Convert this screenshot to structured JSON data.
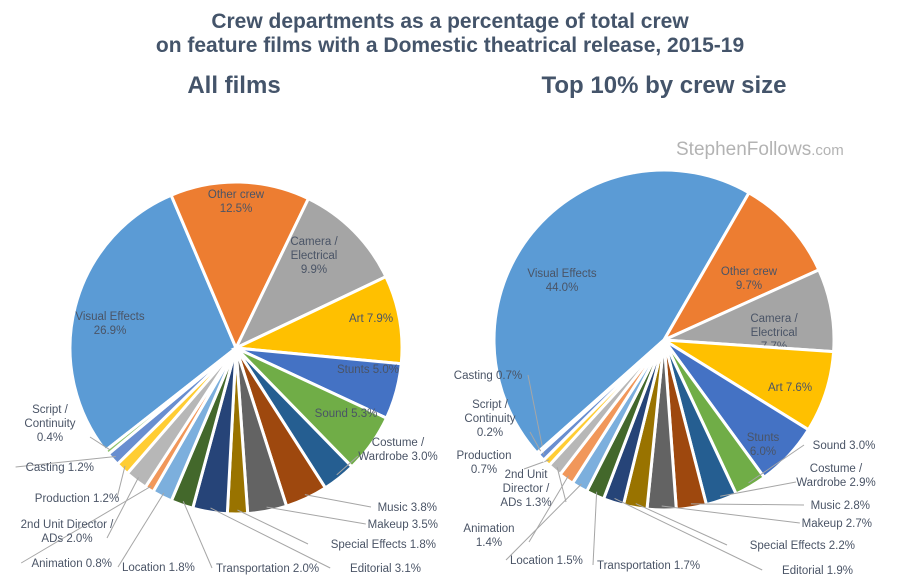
{
  "title_line1": "Crew departments as a percentage of total crew",
  "title_line2": "on feature films with a Domestic theatrical release, 2015-19",
  "watermark": {
    "name": "StephenFollows",
    "suffix": ".com"
  },
  "chart_data": [
    {
      "type": "pie",
      "title": "All films",
      "slices": [
        {
          "label": "Visual Effects",
          "value": 26.9,
          "color": "#5b9bd5",
          "label_lines": [
            "Visual Effects",
            "26.9%"
          ]
        },
        {
          "label": "Other crew",
          "value": 12.5,
          "color": "#ed7d31",
          "label_lines": [
            "Other crew",
            "12.5%"
          ]
        },
        {
          "label": "Camera / Electrical",
          "value": 9.9,
          "color": "#a5a5a5",
          "label_lines": [
            "Camera /",
            "Electrical",
            "9.9%"
          ]
        },
        {
          "label": "Art",
          "value": 7.9,
          "color": "#ffc000",
          "label_lines": [
            "Art  7.9%"
          ]
        },
        {
          "label": "Stunts",
          "value": 5.0,
          "color": "#4472c4",
          "label_lines": [
            "Stunts 5.0%"
          ]
        },
        {
          "label": "Sound",
          "value": 5.3,
          "color": "#70ad47",
          "label_lines": [
            "Sound 5.3%"
          ]
        },
        {
          "label": "Costume / Wardrobe",
          "value": 3.0,
          "color": "#255e91",
          "label_lines": [
            "Costume /",
            "Wardrobe 3.0%"
          ]
        },
        {
          "label": "Music",
          "value": 3.8,
          "color": "#9e480e",
          "label_lines": [
            "Music 3.8%"
          ]
        },
        {
          "label": "Makeup",
          "value": 3.5,
          "color": "#636363",
          "label_lines": [
            "Makeup 3.5%"
          ]
        },
        {
          "label": "Special Effects",
          "value": 1.8,
          "color": "#997300",
          "label_lines": [
            "Special Effects 1.8%"
          ]
        },
        {
          "label": "Editorial",
          "value": 3.1,
          "color": "#264478",
          "label_lines": [
            "Editorial 3.1%"
          ]
        },
        {
          "label": "Transportation",
          "value": 2.0,
          "color": "#43682b",
          "label_lines": [
            "Transportation 2.0%"
          ]
        },
        {
          "label": "Location",
          "value": 1.8,
          "color": "#7cafdd",
          "label_lines": [
            "Location 1.8%"
          ]
        },
        {
          "label": "Animation",
          "value": 0.8,
          "color": "#f1975a",
          "label_lines": [
            "Animation 0.8%"
          ]
        },
        {
          "label": "2nd Unit Director / ADs",
          "value": 2.0,
          "color": "#b7b7b7",
          "label_lines": [
            "2nd Unit Director /",
            "ADs 2.0%"
          ]
        },
        {
          "label": "Production",
          "value": 1.2,
          "color": "#ffcd33",
          "label_lines": [
            "Production 1.2%"
          ]
        },
        {
          "label": "Casting",
          "value": 1.2,
          "color": "#698ed0",
          "label_lines": [
            "Casting 1.2%"
          ]
        },
        {
          "label": "Script / Continuity",
          "value": 0.4,
          "color": "#8cc168",
          "label_lines": [
            "Script /",
            "Continuity",
            "0.4%"
          ]
        }
      ]
    },
    {
      "type": "pie",
      "title": "Top 10% by crew size",
      "slices": [
        {
          "label": "Visual Effects",
          "value": 44.0,
          "color": "#5b9bd5",
          "label_lines": [
            "Visual Effects",
            "44.0%"
          ]
        },
        {
          "label": "Other crew",
          "value": 9.7,
          "color": "#ed7d31",
          "label_lines": [
            "Other crew",
            "9.7%"
          ]
        },
        {
          "label": "Camera / Electrical",
          "value": 7.7,
          "color": "#a5a5a5",
          "label_lines": [
            "Camera /",
            "Electrical",
            "7.7%"
          ]
        },
        {
          "label": "Art",
          "value": 7.6,
          "color": "#ffc000",
          "label_lines": [
            "Art  7.6%"
          ]
        },
        {
          "label": "Stunts",
          "value": 6.0,
          "color": "#4472c4",
          "label_lines": [
            "Stunts",
            "6.0%"
          ]
        },
        {
          "label": "Sound",
          "value": 3.0,
          "color": "#70ad47",
          "label_lines": [
            "Sound 3.0%"
          ]
        },
        {
          "label": "Costume / Wardrobe",
          "value": 2.9,
          "color": "#255e91",
          "label_lines": [
            "Costume /",
            "Wardrobe 2.9%"
          ]
        },
        {
          "label": "Music",
          "value": 2.8,
          "color": "#9e480e",
          "label_lines": [
            "Music 2.8%"
          ]
        },
        {
          "label": "Makeup",
          "value": 2.7,
          "color": "#636363",
          "label_lines": [
            "Makeup 2.7%"
          ]
        },
        {
          "label": "Special Effects",
          "value": 2.2,
          "color": "#997300",
          "label_lines": [
            "Special Effects 2.2%"
          ]
        },
        {
          "label": "Editorial",
          "value": 1.9,
          "color": "#264478",
          "label_lines": [
            "Editorial 1.9%"
          ]
        },
        {
          "label": "Transportation",
          "value": 1.7,
          "color": "#43682b",
          "label_lines": [
            "Transportation 1.7%"
          ]
        },
        {
          "label": "Location",
          "value": 1.5,
          "color": "#7cafdd",
          "label_lines": [
            "Location 1.5%"
          ]
        },
        {
          "label": "Animation",
          "value": 1.4,
          "color": "#f1975a",
          "label_lines": [
            "Animation",
            "1.4%"
          ]
        },
        {
          "label": "2nd Unit Director / ADs",
          "value": 1.3,
          "color": "#b7b7b7",
          "label_lines": [
            "2nd Unit",
            "Director /",
            "ADs 1.3%"
          ]
        },
        {
          "label": "Production",
          "value": 0.7,
          "color": "#ffcd33",
          "label_lines": [
            "Production",
            "0.7%"
          ]
        },
        {
          "label": "Casting",
          "value": 0.7,
          "color": "#698ed0",
          "label_lines": [
            "Casting 0.7%"
          ]
        },
        {
          "label": "Script / Continuity",
          "value": 0.2,
          "color": "#8cc168",
          "label_lines": [
            "Script /",
            "Continuity",
            "0.2%"
          ]
        }
      ]
    }
  ]
}
